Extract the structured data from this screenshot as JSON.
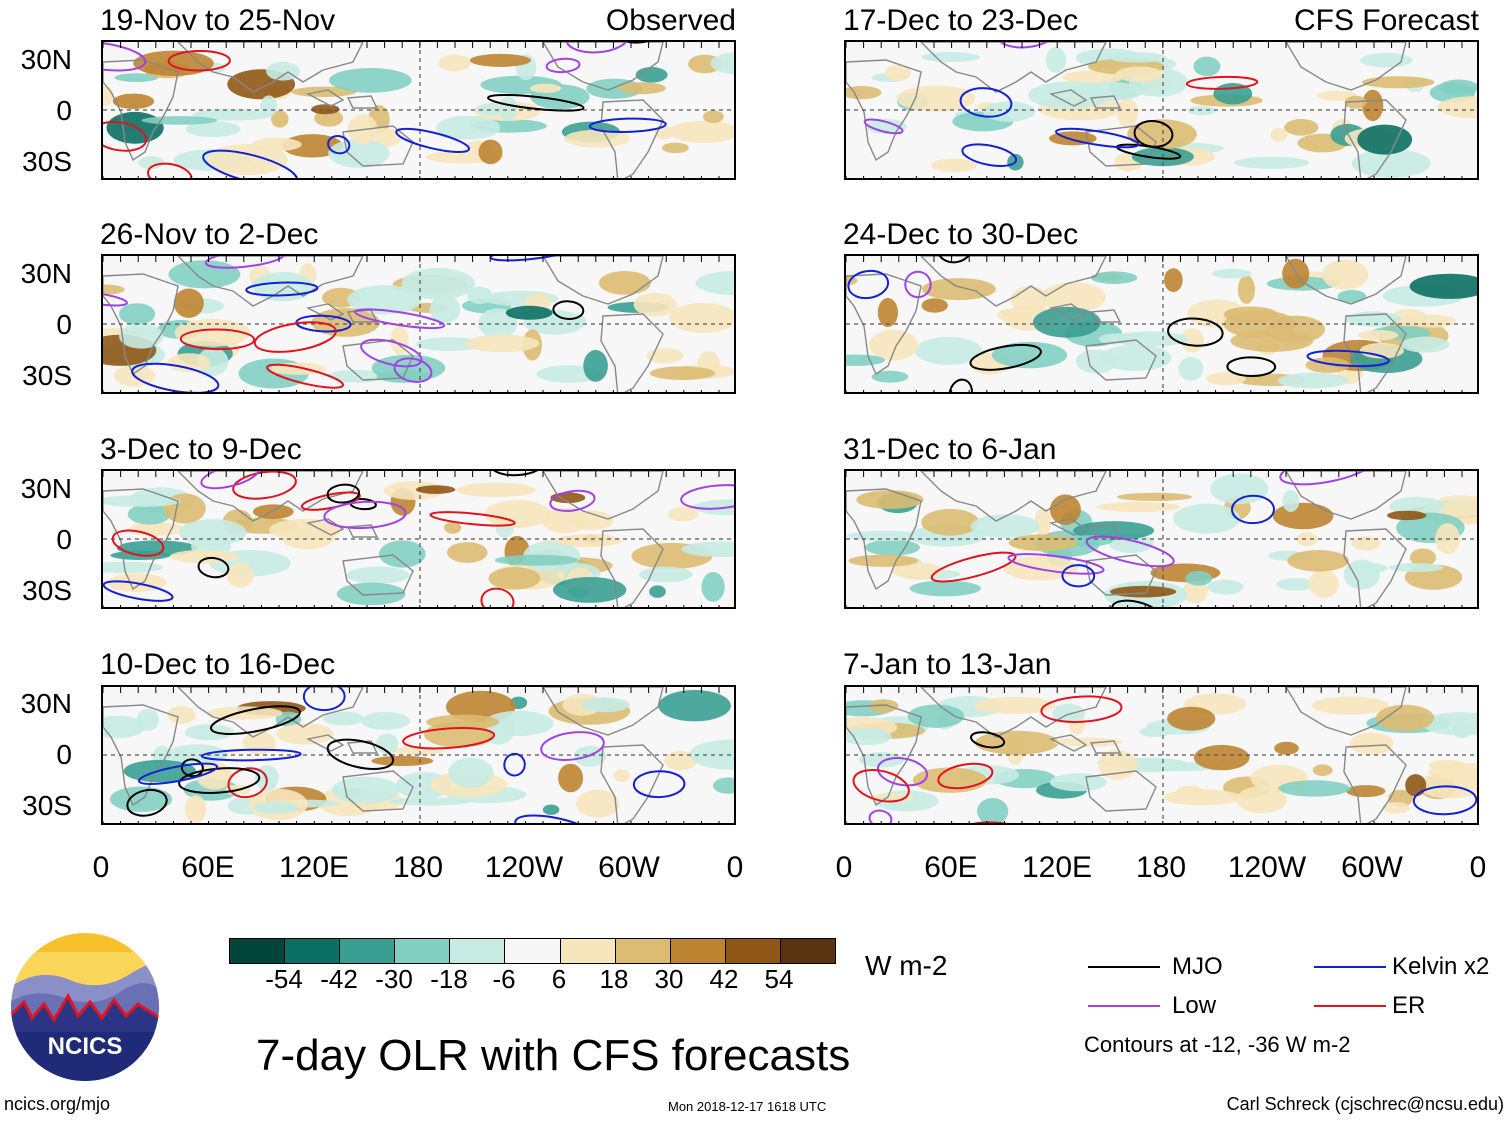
{
  "panels_left": [
    {
      "title": "19-Nov to 25-Nov",
      "tag": "Observed"
    },
    {
      "title": "26-Nov to 2-Dec",
      "tag": ""
    },
    {
      "title": "3-Dec to 9-Dec",
      "tag": ""
    },
    {
      "title": "10-Dec to 16-Dec",
      "tag": ""
    }
  ],
  "panels_right": [
    {
      "title": "17-Dec to 23-Dec",
      "tag": "CFS Forecast"
    },
    {
      "title": "24-Dec to 30-Dec",
      "tag": ""
    },
    {
      "title": "31-Dec to 6-Jan",
      "tag": ""
    },
    {
      "title": "7-Jan to 13-Jan",
      "tag": ""
    }
  ],
  "y_ticks": [
    "30N",
    "0",
    "30S"
  ],
  "x_ticks": [
    "0",
    "60E",
    "120E",
    "180",
    "120W",
    "60W",
    "0"
  ],
  "colorbar": {
    "labels": [
      "-54",
      "-42",
      "-30",
      "-18",
      "-6",
      "6",
      "18",
      "30",
      "42",
      "54"
    ],
    "colors": [
      "#00453a",
      "#0c6f63",
      "#3a9e92",
      "#82cfc2",
      "#c7ebe3",
      "#f7f7f7",
      "#f6e6bd",
      "#dcbb72",
      "#bd8432",
      "#8f5715",
      "#5a3412"
    ],
    "units": "W m-2"
  },
  "legend": {
    "items": [
      {
        "label": "MJO",
        "color": "#000000"
      },
      {
        "label": "Kelvin x2",
        "color": "#1420d4"
      },
      {
        "label": "Low",
        "color": "#a042e6"
      },
      {
        "label": "ER",
        "color": "#e0141e"
      }
    ],
    "note": "Contours at -12, -36 W m-2"
  },
  "main_title": "7-day OLR with CFS forecasts",
  "logo_text": "NCICS",
  "footer": {
    "url": "ncics.org/mjo",
    "timestamp": "Mon 2018-12-17 1618 UTC",
    "credit": "Carl Schreck (cjschrec@ncsu.edu)"
  }
}
